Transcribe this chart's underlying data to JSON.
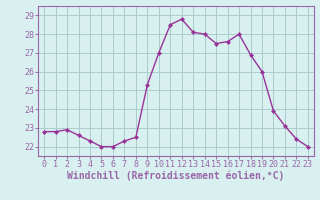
{
  "hours": [
    0,
    1,
    2,
    3,
    4,
    5,
    6,
    7,
    8,
    9,
    10,
    11,
    12,
    13,
    14,
    15,
    16,
    17,
    18,
    19,
    20,
    21,
    22,
    23
  ],
  "values": [
    22.8,
    22.8,
    22.9,
    22.6,
    22.3,
    22.0,
    22.0,
    22.3,
    22.5,
    25.3,
    27.0,
    28.5,
    28.8,
    28.1,
    28.0,
    27.5,
    27.6,
    28.0,
    26.9,
    26.0,
    23.9,
    23.1,
    22.4,
    22.0
  ],
  "line_color": "#993399",
  "marker": "D",
  "marker_size": 2,
  "bg_color": "#d8f0f0",
  "grid_color": "#aacccc",
  "xlabel": "Windchill (Refroidissement éolien,°C)",
  "xlabel_fontsize": 7,
  "ylim": [
    21.5,
    29.5
  ],
  "yticks": [
    22,
    23,
    24,
    25,
    26,
    27,
    28,
    29
  ],
  "xticks": [
    0,
    1,
    2,
    3,
    4,
    5,
    6,
    7,
    8,
    9,
    10,
    11,
    12,
    13,
    14,
    15,
    16,
    17,
    18,
    19,
    20,
    21,
    22,
    23
  ],
  "tick_fontsize": 6,
  "spine_color": "#9966aa"
}
